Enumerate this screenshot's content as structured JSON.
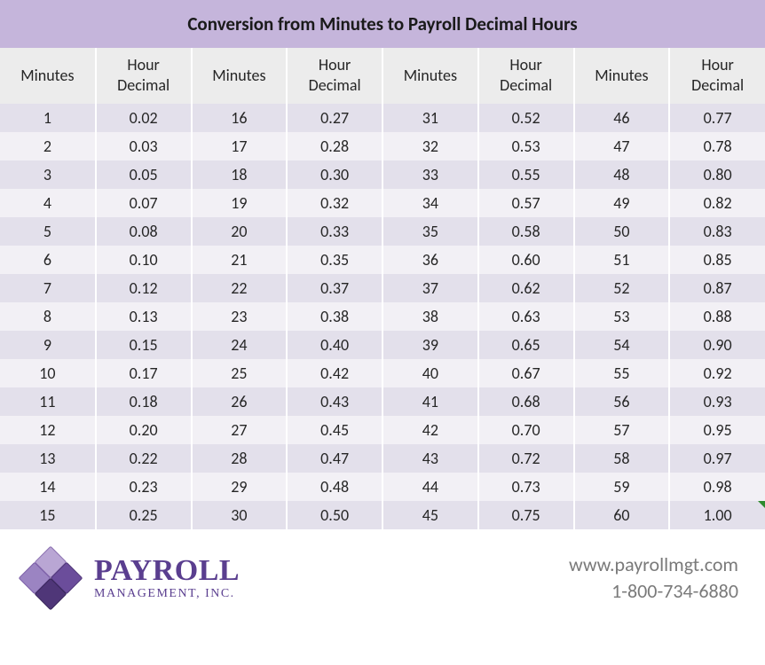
{
  "title": "Conversion from Minutes to Payroll Decimal Hours",
  "headers": {
    "minutes": "Minutes",
    "decimal": "Hour Decimal"
  },
  "styling": {
    "title_bg": "#c5b5db",
    "header_bg": "#ececec",
    "row_odd_bg": "#e3e0eb",
    "row_even_bg": "#f2f0f5",
    "border_color": "#ffffff",
    "text_color": "#262626",
    "title_fontsize": 21,
    "header_fontsize": 18,
    "cell_fontsize": 18,
    "font_family": "Calibri, Arial, sans-serif",
    "triangle_color": "#2e8b2e"
  },
  "rows": [
    {
      "c1": "1",
      "c2": "0.02",
      "c3": "16",
      "c4": "0.27",
      "c5": "31",
      "c6": "0.52",
      "c7": "46",
      "c8": "0.77"
    },
    {
      "c1": "2",
      "c2": "0.03",
      "c3": "17",
      "c4": "0.28",
      "c5": "32",
      "c6": "0.53",
      "c7": "47",
      "c8": "0.78"
    },
    {
      "c1": "3",
      "c2": "0.05",
      "c3": "18",
      "c4": "0.30",
      "c5": "33",
      "c6": "0.55",
      "c7": "48",
      "c8": "0.80"
    },
    {
      "c1": "4",
      "c2": "0.07",
      "c3": "19",
      "c4": "0.32",
      "c5": "34",
      "c6": "0.57",
      "c7": "49",
      "c8": "0.82"
    },
    {
      "c1": "5",
      "c2": "0.08",
      "c3": "20",
      "c4": "0.33",
      "c5": "35",
      "c6": "0.58",
      "c7": "50",
      "c8": "0.83"
    },
    {
      "c1": "6",
      "c2": "0.10",
      "c3": "21",
      "c4": "0.35",
      "c5": "36",
      "c6": "0.60",
      "c7": "51",
      "c8": "0.85"
    },
    {
      "c1": "7",
      "c2": "0.12",
      "c3": "22",
      "c4": "0.37",
      "c5": "37",
      "c6": "0.62",
      "c7": "52",
      "c8": "0.87"
    },
    {
      "c1": "8",
      "c2": "0.13",
      "c3": "23",
      "c4": "0.38",
      "c5": "38",
      "c6": "0.63",
      "c7": "53",
      "c8": "0.88"
    },
    {
      "c1": "9",
      "c2": "0.15",
      "c3": "24",
      "c4": "0.40",
      "c5": "39",
      "c6": "0.65",
      "c7": "54",
      "c8": "0.90"
    },
    {
      "c1": "10",
      "c2": "0.17",
      "c3": "25",
      "c4": "0.42",
      "c5": "40",
      "c6": "0.67",
      "c7": "55",
      "c8": "0.92"
    },
    {
      "c1": "11",
      "c2": "0.18",
      "c3": "26",
      "c4": "0.43",
      "c5": "41",
      "c6": "0.68",
      "c7": "56",
      "c8": "0.93"
    },
    {
      "c1": "12",
      "c2": "0.20",
      "c3": "27",
      "c4": "0.45",
      "c5": "42",
      "c6": "0.70",
      "c7": "57",
      "c8": "0.95"
    },
    {
      "c1": "13",
      "c2": "0.22",
      "c3": "28",
      "c4": "0.47",
      "c5": "43",
      "c6": "0.72",
      "c7": "58",
      "c8": "0.97"
    },
    {
      "c1": "14",
      "c2": "0.23",
      "c3": "29",
      "c4": "0.48",
      "c5": "44",
      "c6": "0.73",
      "c7": "59",
      "c8": "0.98"
    },
    {
      "c1": "15",
      "c2": "0.25",
      "c3": "30",
      "c4": "0.50",
      "c5": "45",
      "c6": "0.75",
      "c7": "60",
      "c8": "1.00",
      "triangle": true
    }
  ],
  "logo": {
    "main": "PAYROLL",
    "sub": "MANAGEMENT, INC.",
    "colors": {
      "d1": "#b9a6d4",
      "d2": "#9b84c2",
      "d3": "#6b4d9b",
      "d4": "#4f3678",
      "text": "#5a3e8f"
    }
  },
  "contact": {
    "website": "www.payrollmgt.com",
    "phone": "1-800-734-6880",
    "color": "#7a7a7a"
  }
}
